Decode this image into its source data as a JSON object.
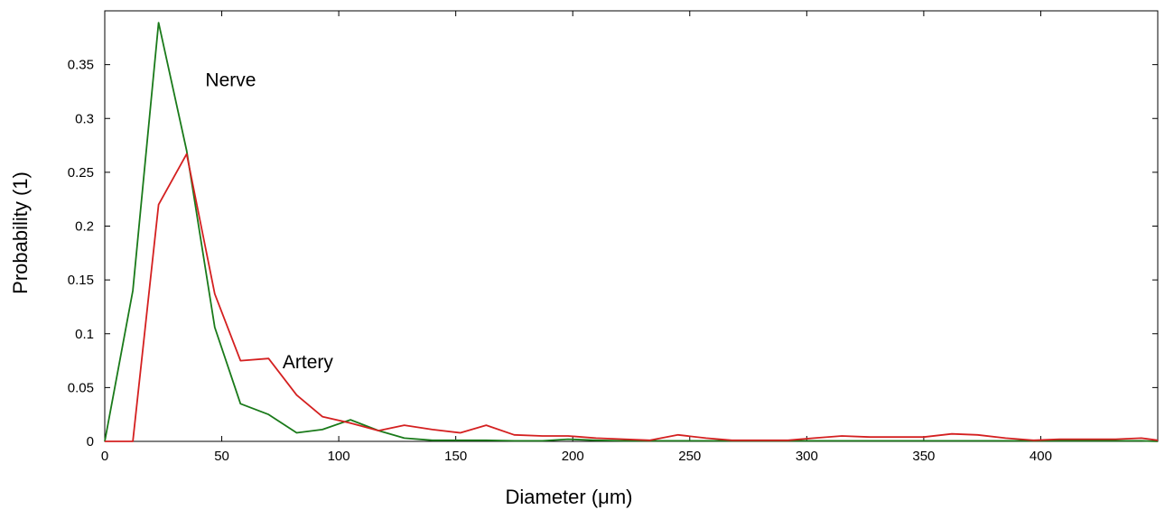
{
  "chart_data": {
    "type": "line",
    "title": "",
    "xlabel": "Diameter (μm)",
    "ylabel": "Probability (1)",
    "xlim": [
      0,
      450
    ],
    "ylim": [
      0,
      0.4
    ],
    "grid": false,
    "x_ticks": [
      0,
      50,
      100,
      150,
      200,
      250,
      300,
      350,
      400
    ],
    "x_tick_labels": [
      "0",
      "50",
      "100",
      "150",
      "200",
      "250",
      "300",
      "350",
      "400"
    ],
    "y_ticks": [
      0,
      0.05,
      0.1,
      0.15,
      0.2,
      0.25,
      0.3,
      0.35
    ],
    "y_tick_labels": [
      "0",
      "0.05",
      "0.1",
      "0.15",
      "0.2",
      "0.25",
      "0.3",
      "0.35"
    ],
    "series": [
      {
        "name": "Nerve",
        "color": "#1a7a1a",
        "x": [
          0,
          12,
          23,
          35,
          47,
          58,
          70,
          82,
          93,
          105,
          117,
          128,
          140,
          152,
          163,
          175,
          187,
          198,
          210,
          222,
          233,
          245,
          257,
          268,
          280,
          292,
          303,
          315,
          327,
          338,
          350,
          362,
          373,
          385,
          397,
          408,
          420,
          432,
          443,
          450
        ],
        "y": [
          0,
          0.14,
          0.389,
          0.27,
          0.106,
          0.035,
          0.025,
          0.008,
          0.011,
          0.02,
          0.01,
          0.003,
          0.001,
          0.001,
          0.001,
          0.0005,
          0.0005,
          0.002,
          0.001,
          0.0005,
          0.0005,
          0.0005,
          0.0005,
          0.0005,
          0.0005,
          0.0005,
          0.0005,
          0.0005,
          0.0005,
          0.0005,
          0.0005,
          0.0005,
          0.0005,
          0.0005,
          0.0005,
          0.0005,
          0.0005,
          0.0005,
          0.0005,
          0
        ]
      },
      {
        "name": "Artery",
        "color": "#d42020",
        "x": [
          0,
          12,
          23,
          35,
          47,
          58,
          70,
          82,
          93,
          105,
          117,
          128,
          140,
          152,
          163,
          175,
          187,
          198,
          210,
          222,
          233,
          245,
          257,
          268,
          280,
          292,
          303,
          315,
          327,
          338,
          350,
          362,
          373,
          385,
          397,
          408,
          420,
          432,
          443,
          450
        ],
        "y": [
          0,
          0,
          0.22,
          0.267,
          0.137,
          0.075,
          0.077,
          0.043,
          0.023,
          0.017,
          0.01,
          0.015,
          0.011,
          0.008,
          0.015,
          0.006,
          0.005,
          0.005,
          0.003,
          0.002,
          0.001,
          0.006,
          0.003,
          0.001,
          0.001,
          0.001,
          0.003,
          0.005,
          0.004,
          0.004,
          0.004,
          0.007,
          0.006,
          0.003,
          0.001,
          0.002,
          0.002,
          0.002,
          0.003,
          0.001
        ]
      }
    ],
    "annotations": [
      {
        "text": "Nerve",
        "series": "Nerve",
        "x": 43,
        "y": 0.33
      },
      {
        "text": "Artery",
        "series": "Artery",
        "x": 76,
        "y": 0.068
      }
    ]
  }
}
